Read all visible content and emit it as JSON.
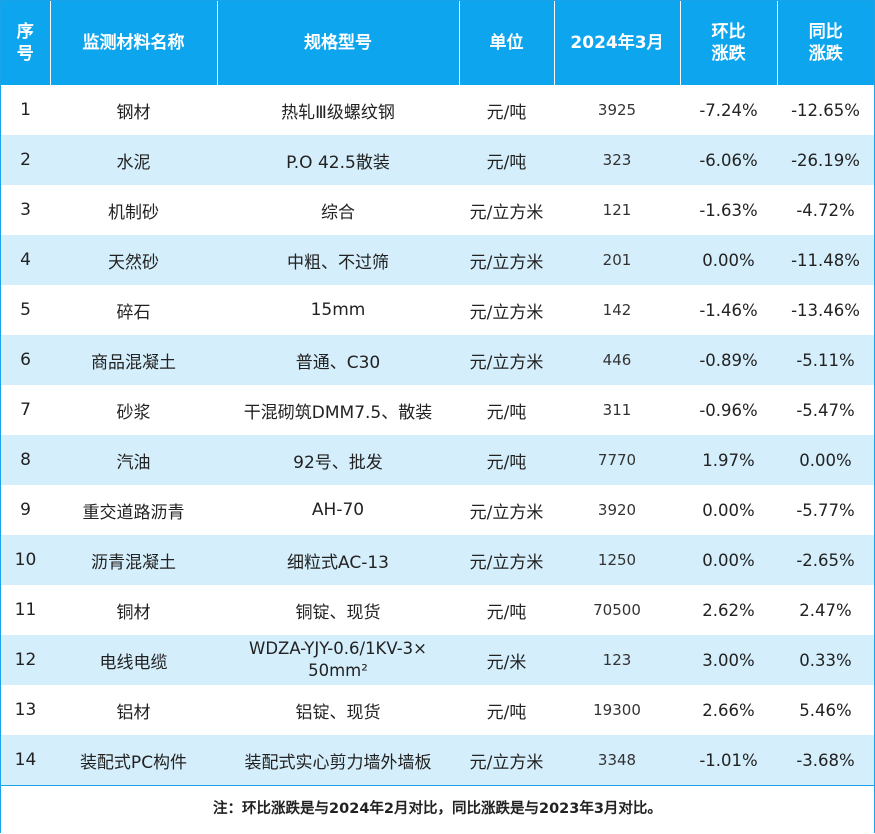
{
  "headers": [
    {
      "line1": "序",
      "line2": "号"
    },
    {
      "line1": "监测材料名称",
      "line2": ""
    },
    {
      "line1": "规格型号",
      "line2": ""
    },
    {
      "line1": "单位",
      "line2": ""
    },
    {
      "line1": "2024年3月",
      "line2": ""
    },
    {
      "line1": "环比",
      "line2": "涨跌"
    },
    {
      "line1": "同比",
      "line2": "涨跌"
    }
  ],
  "rows": [
    {
      "no": "1",
      "name": "钢材",
      "spec": "热轧Ⅲ级螺纹钢",
      "unit": "元/吨",
      "price": "3925",
      "mom": "-7.24%",
      "yoy": "-12.65%"
    },
    {
      "no": "2",
      "name": "水泥",
      "spec": "P.O 42.5散装",
      "unit": "元/吨",
      "price": "323",
      "mom": "-6.06%",
      "yoy": "-26.19%"
    },
    {
      "no": "3",
      "name": "机制砂",
      "spec": "综合",
      "unit": "元/立方米",
      "price": "121",
      "mom": "-1.63%",
      "yoy": "-4.72%"
    },
    {
      "no": "4",
      "name": "天然砂",
      "spec": "中粗、不过筛",
      "unit": "元/立方米",
      "price": "201",
      "mom": "0.00%",
      "yoy": "-11.48%"
    },
    {
      "no": "5",
      "name": "碎石",
      "spec": "15mm",
      "unit": "元/立方米",
      "price": "142",
      "mom": "-1.46%",
      "yoy": "-13.46%"
    },
    {
      "no": "6",
      "name": "商品混凝土",
      "spec": "普通、C30",
      "unit": "元/立方米",
      "price": "446",
      "mom": "-0.89%",
      "yoy": "-5.11%"
    },
    {
      "no": "7",
      "name": "砂浆",
      "spec": "干混砌筑DMM7.5、散装",
      "unit": "元/吨",
      "price": "311",
      "mom": "-0.96%",
      "yoy": "-5.47%"
    },
    {
      "no": "8",
      "name": "汽油",
      "spec": "92号、批发",
      "unit": "元/吨",
      "price": "7770",
      "mom": "1.97%",
      "yoy": "0.00%"
    },
    {
      "no": "9",
      "name": "重交道路沥青",
      "spec": "AH-70",
      "unit": "元/立方米",
      "price": "3920",
      "mom": "0.00%",
      "yoy": "-5.77%"
    },
    {
      "no": "10",
      "name": "沥青混凝土",
      "spec": "细粒式AC-13",
      "unit": "元/立方米",
      "price": "1250",
      "mom": "0.00%",
      "yoy": "-2.65%"
    },
    {
      "no": "11",
      "name": "铜材",
      "spec": "铜锭、现货",
      "unit": "元/吨",
      "price": "70500",
      "mom": "2.62%",
      "yoy": "2.47%"
    },
    {
      "no": "12",
      "name": "电线电缆",
      "spec": "WDZA-YJY-0.6/1KV-3×",
      "spec_line2": "50mm²",
      "unit": "元/米",
      "price": "123",
      "mom": "3.00%",
      "yoy": "0.33%"
    },
    {
      "no": "13",
      "name": "铝材",
      "spec": "铝锭、现货",
      "unit": "元/吨",
      "price": "19300",
      "mom": "2.66%",
      "yoy": "5.46%"
    },
    {
      "no": "14",
      "name": "装配式PC构件",
      "spec": "装配式实心剪力墙外墙板",
      "unit": "元/立方米",
      "price": "3348",
      "mom": "-1.01%",
      "yoy": "-3.68%"
    }
  ],
  "footnote": "注：环比涨跌是与2024年2月对比，同比涨跌是与2023年3月对比。"
}
